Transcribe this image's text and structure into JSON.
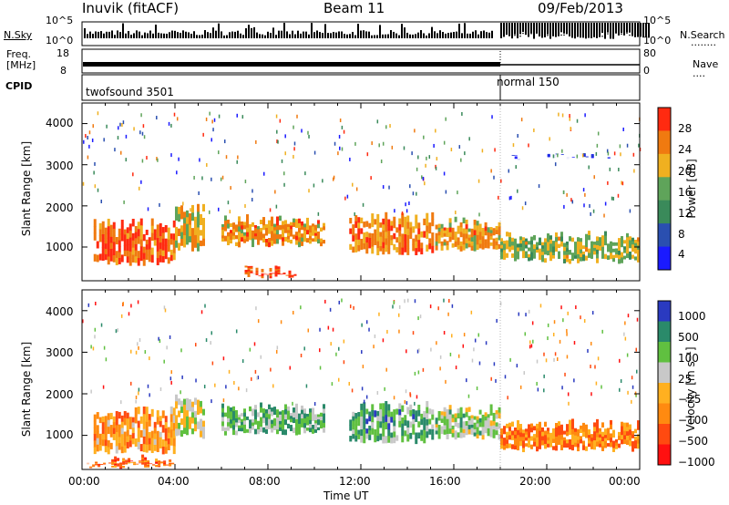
{
  "header": {
    "station": "Inuvik (fitACF)",
    "beam": "Beam 11",
    "date": "09/Feb/2013"
  },
  "panels": {
    "nsky": {
      "label": "N.Sky",
      "ticks_left": [
        "10^5",
        "10^0"
      ],
      "ticks_right": [
        "10^5",
        "10^0"
      ],
      "right_label": "N.Search",
      "right_dots": "........"
    },
    "freq": {
      "label_top": "Freq.",
      "label_bottom": "[MHz]",
      "ticks_left": [
        "18",
        "8"
      ],
      "ticks_right": [
        "80",
        "0"
      ],
      "right_label": "Nave",
      "right_dots": "...."
    },
    "cpid": {
      "label": "CPID",
      "seg1": "twofsound 3501",
      "seg2": "normal 150"
    }
  },
  "chart_data": [
    {
      "type": "heatmap",
      "quantity": "power",
      "ylabel": "Slant Range [km]",
      "yticks": [
        "4000",
        "3000",
        "2000",
        "1000"
      ],
      "ylim": [
        180,
        4500
      ],
      "x": [
        "00:00",
        "04:00",
        "08:00",
        "12:00",
        "16:00",
        "20:00",
        "00:00"
      ],
      "colorbar": {
        "label": "Power [dB]",
        "ticks": [
          "28",
          "24",
          "20",
          "16",
          "12",
          "8",
          "4"
        ]
      },
      "bands": [
        {
          "t0": 0.5,
          "t1": 4.0,
          "r0": 550,
          "r1": 1700,
          "level": 0.85
        },
        {
          "t0": 4.0,
          "t1": 5.3,
          "r0": 900,
          "r1": 2050,
          "level": 0.65
        },
        {
          "t0": 6.0,
          "t1": 10.5,
          "r0": 1000,
          "r1": 1800,
          "level": 0.72
        },
        {
          "t0": 7.0,
          "t1": 9.2,
          "r0": 250,
          "r1": 600,
          "level": 0.9
        },
        {
          "t0": 11.5,
          "t1": 15.2,
          "r0": 800,
          "r1": 1850,
          "level": 0.75
        },
        {
          "t0": 15.2,
          "t1": 18.0,
          "r0": 900,
          "r1": 1750,
          "level": 0.7
        },
        {
          "t0": 18.0,
          "t1": 24.0,
          "r0": 600,
          "r1": 1400,
          "level": 0.55
        },
        {
          "t0": 18.5,
          "t1": 23.0,
          "r0": 3150,
          "r1": 3300,
          "level": 0.1
        }
      ]
    },
    {
      "type": "heatmap",
      "quantity": "velocity",
      "ylabel": "Slant Range [km]",
      "yticks": [
        "4000",
        "3000",
        "2000",
        "1000"
      ],
      "ylim": [
        180,
        4500
      ],
      "x": [
        "00:00",
        "04:00",
        "08:00",
        "12:00",
        "16:00",
        "20:00",
        "00:00"
      ],
      "xlabel": "Time UT",
      "colorbar": {
        "label": "Velocity [m s⁻¹]",
        "ticks": [
          "1000",
          "500",
          "100",
          "25",
          "−25",
          "−100",
          "−500",
          "−1000"
        ]
      },
      "bands": [
        {
          "t0": 0.5,
          "t1": 4.0,
          "r0": 550,
          "r1": 1700,
          "level": 0.35
        },
        {
          "t0": 4.0,
          "t1": 5.3,
          "r0": 900,
          "r1": 2050,
          "level": 0.55
        },
        {
          "t0": 6.0,
          "t1": 10.5,
          "r0": 1000,
          "r1": 1800,
          "level": 0.68
        },
        {
          "t0": 11.5,
          "t1": 15.2,
          "r0": 800,
          "r1": 1850,
          "level": 0.72
        },
        {
          "t0": 15.2,
          "t1": 18.0,
          "r0": 900,
          "r1": 1750,
          "level": 0.62
        },
        {
          "t0": 18.0,
          "t1": 24.0,
          "r0": 600,
          "r1": 1400,
          "level": 0.3
        },
        {
          "t0": 0.2,
          "t1": 4.0,
          "r0": 200,
          "r1": 550,
          "level": 0.25
        }
      ]
    }
  ],
  "colors": {
    "power": [
      "#1a1aff",
      "#2a4fb0",
      "#3a8a5a",
      "#5fa45a",
      "#f0b020",
      "#f07a10",
      "#ff2a10"
    ],
    "velocity": [
      "#ff1010",
      "#ff4a10",
      "#ff8a10",
      "#ffb020",
      "#c8c8c8",
      "#60c040",
      "#2a8a6a",
      "#2a3ac0"
    ]
  }
}
